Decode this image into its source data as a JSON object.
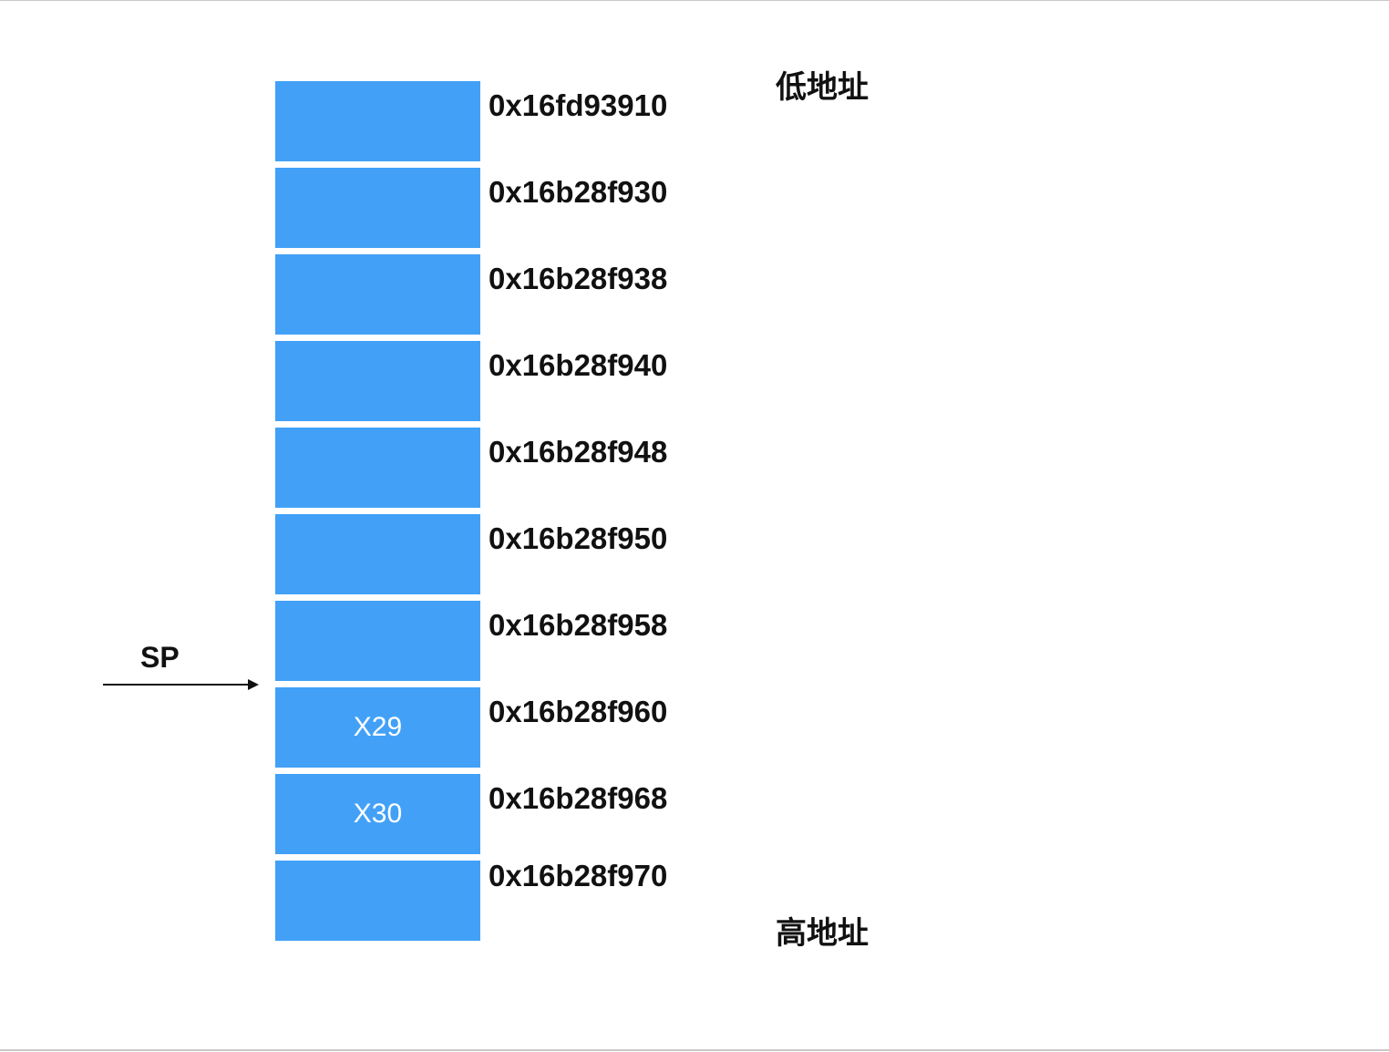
{
  "cells": [
    {
      "label": "",
      "address": "0x16fd93910"
    },
    {
      "label": "",
      "address": "0x16b28f930"
    },
    {
      "label": "",
      "address": "0x16b28f938"
    },
    {
      "label": "",
      "address": "0x16b28f940"
    },
    {
      "label": "",
      "address": "0x16b28f948"
    },
    {
      "label": "",
      "address": "0x16b28f950"
    },
    {
      "label": "",
      "address": "0x16b28f958"
    },
    {
      "label": "X29",
      "address": "0x16b28f960"
    },
    {
      "label": "X30",
      "address": "0x16b28f968"
    },
    {
      "label": "",
      "address": "0x16b28f970"
    }
  ],
  "low_address_label": "低地址",
  "high_address_label": "高地址",
  "pointer": {
    "label": "SP"
  },
  "colors": {
    "cell_fill": "#42a1f7",
    "cell_text": "#ffffff",
    "text": "#111111"
  }
}
